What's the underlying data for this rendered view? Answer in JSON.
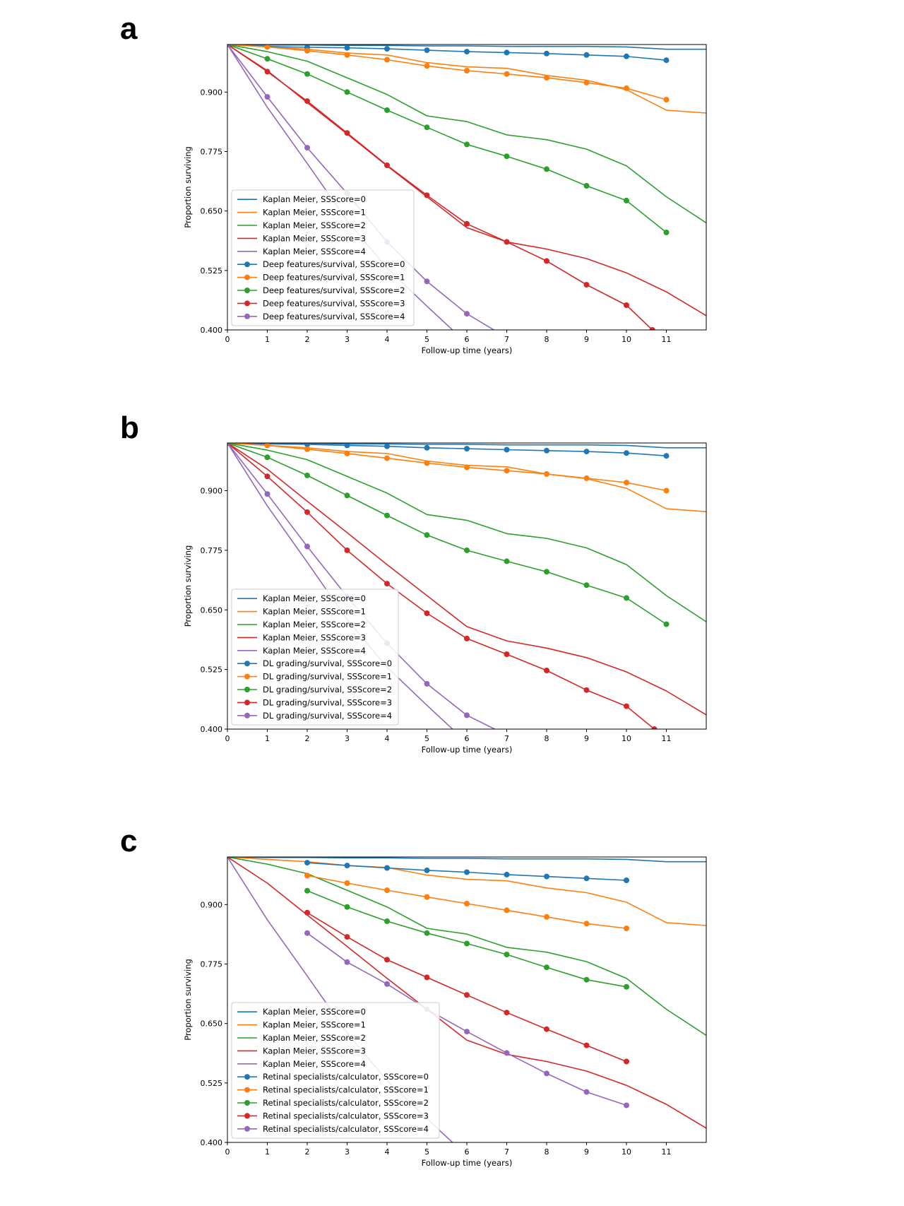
{
  "figure": {
    "colors": {
      "0": "#1f77b4",
      "1": "#ff7f0e",
      "2": "#2ca02c",
      "3": "#d62728",
      "4": "#9467bd"
    }
  },
  "chart_data": [
    {
      "panel": "a",
      "type": "line",
      "xlabel": "Follow-up time (years)",
      "ylabel": "Proportion surviving",
      "xlim": [
        0,
        12
      ],
      "ylim": [
        0.4,
        1.0
      ],
      "xticks": [
        "0",
        "1",
        "2",
        "3",
        "4",
        "5",
        "6",
        "7",
        "8",
        "9",
        "10",
        "11"
      ],
      "yticks": [
        "0.400",
        "0.525",
        "0.650",
        "0.775",
        "0.900"
      ],
      "legend_position": "lower-left",
      "series": [
        {
          "name": "Kaplan Meier, SSScore=0",
          "color": "#1f77b4",
          "marker": false,
          "x": [
            0,
            1,
            2,
            3,
            4,
            5,
            6,
            7,
            8,
            9,
            10,
            11,
            12
          ],
          "y": [
            1.0,
            0.999,
            0.999,
            0.998,
            0.998,
            0.997,
            0.997,
            0.996,
            0.996,
            0.996,
            0.995,
            0.99,
            0.99
          ]
        },
        {
          "name": "Kaplan Meier, SSScore=1",
          "color": "#ff7f0e",
          "marker": false,
          "x": [
            0,
            1,
            2,
            3,
            4,
            5,
            6,
            7,
            8,
            9,
            10,
            11,
            12
          ],
          "y": [
            1.0,
            0.995,
            0.99,
            0.982,
            0.978,
            0.962,
            0.953,
            0.95,
            0.935,
            0.925,
            0.905,
            0.862,
            0.856
          ]
        },
        {
          "name": "Kaplan Meier, SSScore=2",
          "color": "#2ca02c",
          "marker": false,
          "x": [
            0,
            1,
            2,
            3,
            4,
            5,
            6,
            7,
            8,
            9,
            10,
            11,
            12
          ],
          "y": [
            1.0,
            0.985,
            0.965,
            0.93,
            0.895,
            0.85,
            0.838,
            0.81,
            0.8,
            0.78,
            0.745,
            0.68,
            0.625
          ]
        },
        {
          "name": "Kaplan Meier, SSScore=3",
          "color": "#d62728",
          "marker": false,
          "x": [
            0,
            1,
            2,
            3,
            4,
            5,
            6,
            7,
            8,
            9,
            10,
            11,
            12
          ],
          "y": [
            1.0,
            0.945,
            0.878,
            0.812,
            0.745,
            0.68,
            0.615,
            0.585,
            0.57,
            0.55,
            0.52,
            0.48,
            0.43
          ]
        },
        {
          "name": "Kaplan Meier, SSScore=4",
          "color": "#9467bd",
          "marker": false,
          "x": [
            0,
            1,
            2,
            3,
            4,
            5,
            5.64
          ],
          "y": [
            1.0,
            0.868,
            0.75,
            0.63,
            0.53,
            0.45,
            0.4
          ]
        },
        {
          "name": "Deep features/survival, SSScore=0",
          "color": "#1f77b4",
          "marker": true,
          "x": [
            0,
            1,
            2,
            3,
            4,
            5,
            6,
            7,
            8,
            9,
            10,
            11
          ],
          "y": [
            1.0,
            0.996,
            0.994,
            0.993,
            0.991,
            0.988,
            0.985,
            0.983,
            0.981,
            0.978,
            0.975,
            0.967
          ]
        },
        {
          "name": "Deep features/survival, SSScore=1",
          "color": "#ff7f0e",
          "marker": true,
          "x": [
            0,
            1,
            2,
            3,
            4,
            5,
            6,
            7,
            8,
            9,
            10,
            11
          ],
          "y": [
            1.0,
            0.995,
            0.987,
            0.978,
            0.968,
            0.955,
            0.945,
            0.938,
            0.93,
            0.92,
            0.908,
            0.884
          ]
        },
        {
          "name": "Deep features/survival, SSScore=2",
          "color": "#2ca02c",
          "marker": true,
          "x": [
            0,
            1,
            2,
            3,
            4,
            5,
            6,
            7,
            8,
            9,
            10,
            11
          ],
          "y": [
            1.0,
            0.97,
            0.938,
            0.9,
            0.862,
            0.826,
            0.79,
            0.765,
            0.738,
            0.703,
            0.672,
            0.605
          ]
        },
        {
          "name": "Deep features/survival, SSScore=3",
          "color": "#d62728",
          "marker": true,
          "x": [
            0,
            1,
            2,
            3,
            4,
            5,
            6,
            7,
            8,
            9,
            10,
            10.65
          ],
          "y": [
            1.0,
            0.943,
            0.881,
            0.814,
            0.746,
            0.683,
            0.623,
            0.585,
            0.545,
            0.495,
            0.452,
            0.4
          ]
        },
        {
          "name": "Deep features/survival, SSScore=4",
          "color": "#9467bd",
          "marker": true,
          "x": [
            0,
            1,
            2,
            3,
            4,
            5,
            6,
            6.68
          ],
          "y": [
            1.0,
            0.89,
            0.783,
            0.687,
            0.585,
            0.502,
            0.434,
            0.4
          ],
          "marker_count": 7
        }
      ]
    },
    {
      "panel": "b",
      "type": "line",
      "xlabel": "Follow-up time (years)",
      "ylabel": "Proportion surviving",
      "xlim": [
        0,
        12
      ],
      "ylim": [
        0.4,
        1.0
      ],
      "xticks": [
        "0",
        "1",
        "2",
        "3",
        "4",
        "5",
        "6",
        "7",
        "8",
        "9",
        "10",
        "11"
      ],
      "yticks": [
        "0.400",
        "0.525",
        "0.650",
        "0.775",
        "0.900"
      ],
      "legend_position": "lower-left",
      "series": [
        {
          "name": "Kaplan Meier, SSScore=0",
          "color": "#1f77b4",
          "marker": false,
          "x": [
            0,
            1,
            2,
            3,
            4,
            5,
            6,
            7,
            8,
            9,
            10,
            11,
            12
          ],
          "y": [
            1.0,
            0.999,
            0.999,
            0.998,
            0.998,
            0.997,
            0.997,
            0.996,
            0.996,
            0.996,
            0.995,
            0.99,
            0.99
          ]
        },
        {
          "name": "Kaplan Meier, SSScore=1",
          "color": "#ff7f0e",
          "marker": false,
          "x": [
            0,
            1,
            2,
            3,
            4,
            5,
            6,
            7,
            8,
            9,
            10,
            11,
            12
          ],
          "y": [
            1.0,
            0.995,
            0.99,
            0.982,
            0.978,
            0.962,
            0.953,
            0.95,
            0.935,
            0.925,
            0.905,
            0.862,
            0.856
          ]
        },
        {
          "name": "Kaplan Meier, SSScore=2",
          "color": "#2ca02c",
          "marker": false,
          "x": [
            0,
            1,
            2,
            3,
            4,
            5,
            6,
            7,
            8,
            9,
            10,
            11,
            12
          ],
          "y": [
            1.0,
            0.985,
            0.965,
            0.93,
            0.895,
            0.85,
            0.838,
            0.81,
            0.8,
            0.78,
            0.745,
            0.68,
            0.625
          ]
        },
        {
          "name": "Kaplan Meier, SSScore=3",
          "color": "#d62728",
          "marker": false,
          "x": [
            0,
            1,
            2,
            3,
            4,
            5,
            6,
            7,
            8,
            9,
            10,
            11,
            12
          ],
          "y": [
            1.0,
            0.945,
            0.878,
            0.812,
            0.745,
            0.68,
            0.615,
            0.585,
            0.57,
            0.55,
            0.52,
            0.48,
            0.43
          ]
        },
        {
          "name": "Kaplan Meier, SSScore=4",
          "color": "#9467bd",
          "marker": false,
          "x": [
            0,
            1,
            2,
            3,
            4,
            5,
            5.64
          ],
          "y": [
            1.0,
            0.868,
            0.75,
            0.63,
            0.53,
            0.45,
            0.4
          ]
        },
        {
          "name": "DL grading/survival, SSScore=0",
          "color": "#1f77b4",
          "marker": true,
          "x": [
            0,
            1,
            2,
            3,
            4,
            5,
            6,
            7,
            8,
            9,
            10,
            11
          ],
          "y": [
            1.0,
            0.998,
            0.997,
            0.995,
            0.993,
            0.99,
            0.988,
            0.986,
            0.984,
            0.982,
            0.979,
            0.973
          ]
        },
        {
          "name": "DL grading/survival, SSScore=1",
          "color": "#ff7f0e",
          "marker": true,
          "x": [
            0,
            1,
            2,
            3,
            4,
            5,
            6,
            7,
            8,
            9,
            10,
            11
          ],
          "y": [
            1.0,
            0.995,
            0.987,
            0.978,
            0.968,
            0.958,
            0.949,
            0.942,
            0.935,
            0.926,
            0.917,
            0.9
          ]
        },
        {
          "name": "DL grading/survival, SSScore=2",
          "color": "#2ca02c",
          "marker": true,
          "x": [
            0,
            1,
            2,
            3,
            4,
            5,
            6,
            7,
            8,
            9,
            10,
            11
          ],
          "y": [
            1.0,
            0.97,
            0.932,
            0.89,
            0.848,
            0.807,
            0.775,
            0.752,
            0.73,
            0.702,
            0.675,
            0.62
          ]
        },
        {
          "name": "DL grading/survival, SSScore=3",
          "color": "#d62728",
          "marker": true,
          "x": [
            0,
            1,
            2,
            3,
            4,
            5,
            6,
            7,
            8,
            9,
            10,
            10.7
          ],
          "y": [
            1.0,
            0.93,
            0.855,
            0.775,
            0.705,
            0.643,
            0.59,
            0.557,
            0.523,
            0.482,
            0.448,
            0.4
          ]
        },
        {
          "name": "DL grading/survival, SSScore=4",
          "color": "#9467bd",
          "marker": true,
          "x": [
            0,
            1,
            2,
            3,
            4,
            5,
            6,
            6.7
          ],
          "y": [
            1.0,
            0.893,
            0.783,
            0.678,
            0.58,
            0.495,
            0.429,
            0.4
          ],
          "marker_count": 7
        }
      ]
    },
    {
      "panel": "c",
      "type": "line",
      "xlabel": "Follow-up time (years)",
      "ylabel": "Proportion surviving",
      "xlim": [
        0,
        12
      ],
      "ylim": [
        0.4,
        1.0
      ],
      "xticks": [
        "0",
        "1",
        "2",
        "3",
        "4",
        "5",
        "6",
        "7",
        "8",
        "9",
        "10",
        "11"
      ],
      "yticks": [
        "0.400",
        "0.525",
        "0.650",
        "0.775",
        "0.900"
      ],
      "legend_position": "lower-left",
      "series": [
        {
          "name": "Kaplan Meier, SSScore=0",
          "color": "#1f77b4",
          "marker": false,
          "x": [
            0,
            1,
            2,
            3,
            4,
            5,
            6,
            7,
            8,
            9,
            10,
            11,
            12
          ],
          "y": [
            1.0,
            0.999,
            0.999,
            0.998,
            0.998,
            0.997,
            0.997,
            0.996,
            0.996,
            0.996,
            0.995,
            0.99,
            0.99
          ]
        },
        {
          "name": "Kaplan Meier, SSScore=1",
          "color": "#ff7f0e",
          "marker": false,
          "x": [
            0,
            1,
            2,
            3,
            4,
            5,
            6,
            7,
            8,
            9,
            10,
            11,
            12
          ],
          "y": [
            1.0,
            0.995,
            0.99,
            0.982,
            0.978,
            0.962,
            0.953,
            0.95,
            0.935,
            0.925,
            0.905,
            0.862,
            0.856
          ]
        },
        {
          "name": "Kaplan Meier, SSScore=2",
          "color": "#2ca02c",
          "marker": false,
          "x": [
            0,
            1,
            2,
            3,
            4,
            5,
            6,
            7,
            8,
            9,
            10,
            11,
            12
          ],
          "y": [
            1.0,
            0.985,
            0.965,
            0.93,
            0.895,
            0.85,
            0.838,
            0.81,
            0.8,
            0.78,
            0.745,
            0.68,
            0.625
          ]
        },
        {
          "name": "Kaplan Meier, SSScore=3",
          "color": "#d62728",
          "marker": false,
          "x": [
            0,
            1,
            2,
            3,
            4,
            5,
            6,
            7,
            8,
            9,
            10,
            11,
            12
          ],
          "y": [
            1.0,
            0.945,
            0.878,
            0.812,
            0.745,
            0.68,
            0.615,
            0.585,
            0.57,
            0.55,
            0.52,
            0.48,
            0.43
          ]
        },
        {
          "name": "Kaplan Meier, SSScore=4",
          "color": "#9467bd",
          "marker": false,
          "x": [
            0,
            1,
            2,
            3,
            4,
            5,
            5.64
          ],
          "y": [
            1.0,
            0.868,
            0.75,
            0.63,
            0.53,
            0.45,
            0.4
          ]
        },
        {
          "name": "Retinal specialists/calculator, SSScore=0",
          "color": "#1f77b4",
          "marker": true,
          "x": [
            2,
            3,
            4,
            5,
            6,
            7,
            8,
            9,
            10
          ],
          "y": [
            0.988,
            0.982,
            0.977,
            0.972,
            0.968,
            0.963,
            0.959,
            0.955,
            0.951
          ]
        },
        {
          "name": "Retinal specialists/calculator, SSScore=1",
          "color": "#ff7f0e",
          "marker": true,
          "x": [
            2,
            3,
            4,
            5,
            6,
            7,
            8,
            9,
            10
          ],
          "y": [
            0.961,
            0.945,
            0.93,
            0.916,
            0.902,
            0.888,
            0.874,
            0.86,
            0.85
          ]
        },
        {
          "name": "Retinal specialists/calculator, SSScore=2",
          "color": "#2ca02c",
          "marker": true,
          "x": [
            2,
            3,
            4,
            5,
            6,
            7,
            8,
            9,
            10
          ],
          "y": [
            0.929,
            0.895,
            0.865,
            0.84,
            0.818,
            0.795,
            0.768,
            0.742,
            0.727
          ]
        },
        {
          "name": "Retinal specialists/calculator, SSScore=3",
          "color": "#d62728",
          "marker": true,
          "x": [
            2,
            3,
            4,
            5,
            6,
            7,
            8,
            9,
            10
          ],
          "y": [
            0.883,
            0.832,
            0.784,
            0.747,
            0.71,
            0.673,
            0.638,
            0.604,
            0.57
          ]
        },
        {
          "name": "Retinal specialists/calculator, SSScore=4",
          "color": "#9467bd",
          "marker": true,
          "x": [
            2,
            3,
            4,
            5,
            6,
            7,
            8,
            9,
            10
          ],
          "y": [
            0.84,
            0.779,
            0.733,
            0.68,
            0.633,
            0.588,
            0.545,
            0.506,
            0.478
          ]
        }
      ]
    }
  ]
}
